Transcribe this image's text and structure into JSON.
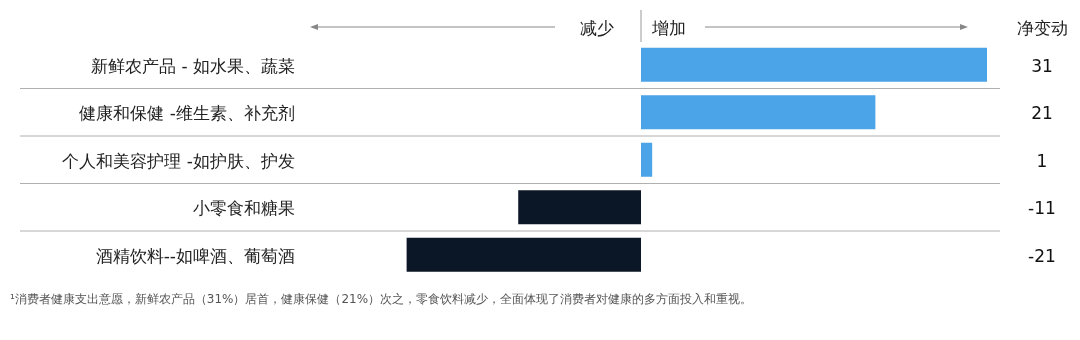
{
  "chart_data": {
    "type": "bar",
    "orientation": "horizontal",
    "categories": [
      "新鲜农产品 - 如水果、蔬菜",
      "健康和保健 -维生素、补充剂",
      "个人和美容护理 -如护肤、护发",
      "小零食和糖果",
      "酒精饮料--如啤酒、葡萄酒"
    ],
    "values": [
      31,
      21,
      1,
      -11,
      -21
    ],
    "colors": [
      "#4ba3e8",
      "#4ba3e8",
      "#4ba3e8",
      "#0b1726",
      "#0b1726"
    ],
    "data_labels": true,
    "annotations": [
      "减少",
      "增加",
      "净变动",
      "¹消费者健康支出意愿，新鲜农产品（31%）居首，健康保健（21%）次之，零食饮料减少，全面体现了消费者对健康的多方面投入和重视。"
    ]
  }
}
